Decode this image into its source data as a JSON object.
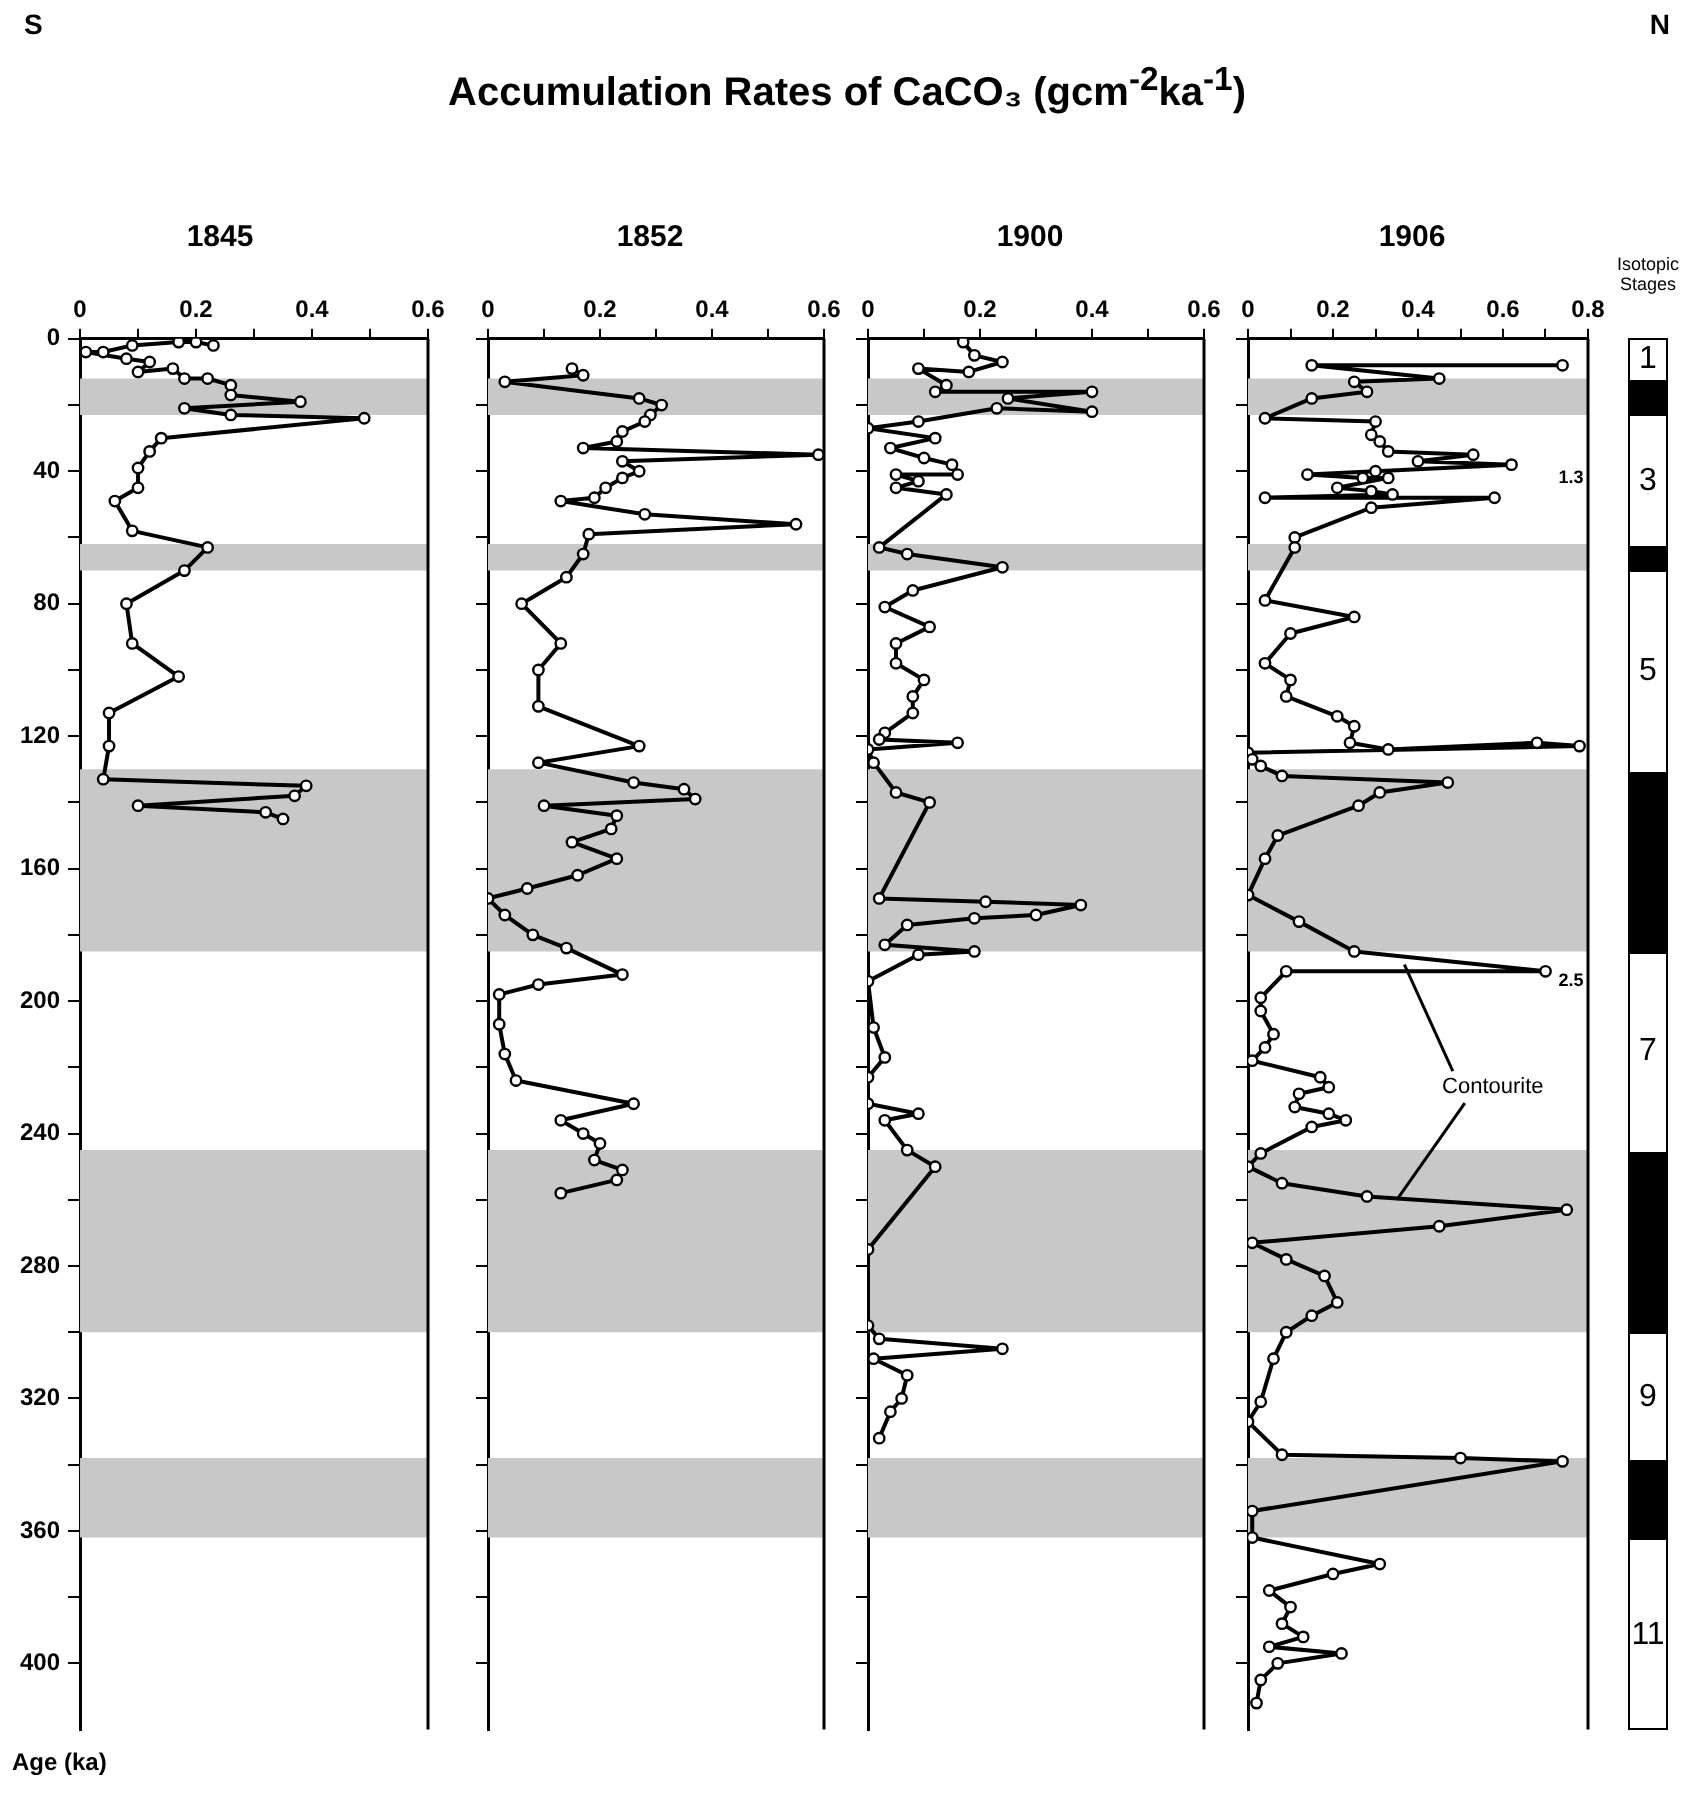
{
  "chart_data": [
    {
      "type": "other",
      "title": "Accumulation Rates of CaCO₃ (gcm$^{-2}$ka$^{-1}$)",
      "annotations": [
        "S",
        "N"
      ]
    },
    {
      "type": "line",
      "title": "1845",
      "ylabel": "Age (ka)",
      "xlim": [
        0,
        0.6
      ],
      "xticks": [
        0,
        {
          "value": 0.1,
          "label": null
        },
        0.2,
        {
          "value": 0.3,
          "label": null
        },
        0.4,
        {
          "value": 0.5,
          "label": null
        },
        0.6
      ],
      "ylim": [
        420,
        0
      ],
      "yticks": [
        0,
        {
          "value": 20,
          "label": null
        },
        40,
        {
          "value": 60,
          "label": null
        },
        80,
        {
          "value": 100,
          "label": null
        },
        120,
        {
          "value": 140,
          "label": null
        },
        160,
        {
          "value": 180,
          "label": null
        },
        200,
        {
          "value": 220,
          "label": null
        },
        240,
        {
          "value": 260,
          "label": null
        },
        280,
        {
          "value": 300,
          "label": null
        },
        320,
        {
          "value": 340,
          "label": null
        },
        360,
        {
          "value": 380,
          "label": null
        },
        400
      ],
      "marker": "circle",
      "bands": [
        {
          "axis": "y",
          "from": 12,
          "to": 23,
          "color": "#c8c8c8"
        },
        {
          "axis": "y",
          "from": 62,
          "to": 70,
          "color": "#c8c8c8"
        },
        {
          "axis": "y",
          "from": 130,
          "to": 185,
          "color": "#c8c8c8"
        },
        {
          "axis": "y",
          "from": 245,
          "to": 300,
          "color": "#c8c8c8"
        },
        {
          "axis": "y",
          "from": 338,
          "to": 362,
          "color": "#c8c8c8"
        }
      ],
      "series": [
        {
          "color": "#000000",
          "x": [
            0.23,
            0.2,
            0.17,
            0.09,
            0.04,
            0.01,
            0.08,
            0.12,
            0.1,
            0.16,
            0.18,
            0.22,
            0.26,
            0.26,
            0.38,
            0.18,
            0.26,
            0.49,
            0.14,
            0.12,
            0.1,
            0.1,
            0.06,
            0.09,
            0.22,
            0.18,
            0.08,
            0.09,
            0.17,
            0.05,
            0.05,
            0.04,
            0.39,
            0.37,
            0.1,
            0.32,
            0.35
          ],
          "values": [
            2,
            1,
            1,
            2,
            4,
            4,
            6,
            7,
            10,
            9,
            12,
            12,
            14,
            17,
            19,
            21,
            23,
            24,
            30,
            34,
            39,
            45,
            49,
            58,
            63,
            70,
            80,
            92,
            102,
            113,
            123,
            133,
            135,
            138,
            141,
            143,
            145
          ]
        }
      ]
    },
    {
      "type": "line",
      "title": "1852",
      "tick_labels": "x",
      "xlim": [
        0,
        0.6
      ],
      "xticks": [
        0,
        {
          "value": 0.1,
          "label": null
        },
        0.2,
        {
          "value": 0.3,
          "label": null
        },
        0.4,
        {
          "value": 0.5,
          "label": null
        },
        0.6
      ],
      "ylim": [
        420,
        0
      ],
      "yticks": [
        0,
        {
          "value": 20,
          "label": null
        },
        40,
        {
          "value": 60,
          "label": null
        },
        80,
        {
          "value": 100,
          "label": null
        },
        120,
        {
          "value": 140,
          "label": null
        },
        160,
        {
          "value": 180,
          "label": null
        },
        200,
        {
          "value": 220,
          "label": null
        },
        240,
        {
          "value": 260,
          "label": null
        },
        280,
        {
          "value": 300,
          "label": null
        },
        320,
        {
          "value": 340,
          "label": null
        },
        360,
        {
          "value": 380,
          "label": null
        },
        400
      ],
      "marker": "circle",
      "bands": [
        {
          "axis": "y",
          "from": 12,
          "to": 23,
          "color": "#c8c8c8"
        },
        {
          "axis": "y",
          "from": 62,
          "to": 70,
          "color": "#c8c8c8"
        },
        {
          "axis": "y",
          "from": 130,
          "to": 185,
          "color": "#c8c8c8"
        },
        {
          "axis": "y",
          "from": 245,
          "to": 300,
          "color": "#c8c8c8"
        },
        {
          "axis": "y",
          "from": 338,
          "to": 362,
          "color": "#c8c8c8"
        }
      ],
      "series": [
        {
          "color": "#000000",
          "x": [
            0.15,
            0.17,
            0.03,
            0.27,
            0.31,
            0.29,
            0.28,
            0.24,
            0.23,
            0.17,
            0.59,
            0.24,
            0.27,
            0.24,
            0.21,
            0.19,
            0.13,
            0.28,
            0.55,
            0.18,
            0.17,
            0.14,
            0.06,
            0.13,
            0.09,
            0.09,
            0.27,
            0.09,
            0.26,
            0.35,
            0.37,
            0.1,
            0.23,
            0.22,
            0.15,
            0.23,
            0.16,
            0.07,
            0,
            0.03,
            0.08,
            0.14,
            0.24,
            0.09,
            0.02,
            0.02,
            0.03,
            0.05,
            0.26,
            0.13,
            0.17,
            0.2,
            0.19,
            0.24,
            0.23,
            0.13
          ],
          "values": [
            9,
            11,
            13,
            18,
            20,
            23,
            25,
            28,
            31,
            33,
            35,
            37,
            40,
            42,
            45,
            48,
            49,
            53,
            56,
            59,
            65,
            72,
            80,
            92,
            100,
            111,
            123,
            128,
            134,
            136,
            139,
            141,
            144,
            148,
            152,
            157,
            162,
            166,
            169,
            174,
            180,
            184,
            192,
            195,
            198,
            207,
            216,
            224,
            231,
            236,
            240,
            243,
            248,
            251,
            254,
            258
          ]
        }
      ]
    },
    {
      "type": "line",
      "title": "1900",
      "tick_labels": "x",
      "xlim": [
        0,
        0.6
      ],
      "xticks": [
        0,
        {
          "value": 0.1,
          "label": null
        },
        0.2,
        {
          "value": 0.3,
          "label": null
        },
        0.4,
        {
          "value": 0.5,
          "label": null
        },
        0.6
      ],
      "ylim": [
        420,
        0
      ],
      "yticks": [
        0,
        {
          "value": 20,
          "label": null
        },
        40,
        {
          "value": 60,
          "label": null
        },
        80,
        {
          "value": 100,
          "label": null
        },
        120,
        {
          "value": 140,
          "label": null
        },
        160,
        {
          "value": 180,
          "label": null
        },
        200,
        {
          "value": 220,
          "label": null
        },
        240,
        {
          "value": 260,
          "label": null
        },
        280,
        {
          "value": 300,
          "label": null
        },
        320,
        {
          "value": 340,
          "label": null
        },
        360,
        {
          "value": 380,
          "label": null
        },
        400
      ],
      "marker": "circle",
      "bands": [
        {
          "axis": "y",
          "from": 12,
          "to": 23,
          "color": "#c8c8c8"
        },
        {
          "axis": "y",
          "from": 62,
          "to": 70,
          "color": "#c8c8c8"
        },
        {
          "axis": "y",
          "from": 130,
          "to": 185,
          "color": "#c8c8c8"
        },
        {
          "axis": "y",
          "from": 245,
          "to": 300,
          "color": "#c8c8c8"
        },
        {
          "axis": "y",
          "from": 338,
          "to": 362,
          "color": "#c8c8c8"
        }
      ],
      "series": [
        {
          "color": "#000000",
          "x": [
            0.17,
            0.19,
            0.24,
            0.18,
            0.09,
            0.14,
            0.12,
            0.4,
            0.25,
            0.4,
            0.23,
            0.09,
            0,
            0.12,
            0.04,
            0.1,
            0.15,
            0.16,
            0.05,
            0.09,
            0.05,
            0.14,
            0.02,
            0.07,
            0.24,
            0.08,
            0.03,
            0.11,
            0.05,
            0.05,
            0.1,
            0.08,
            0.08,
            0.03,
            0.02,
            0.16,
            0,
            0.01,
            0.05,
            0.11,
            0.02,
            0.21,
            0.38,
            0.3,
            0.19,
            0.07,
            0.03,
            0.19,
            0.09,
            0,
            0.01,
            0.03,
            0,
            0,
            0.09,
            0.03,
            0.07,
            0.12,
            0,
            0,
            0.02,
            0.24,
            0.01,
            0.07,
            0.06,
            0.04,
            0.02
          ],
          "values": [
            1,
            5,
            7,
            10,
            9,
            14,
            16,
            16,
            18,
            22,
            21,
            25,
            27,
            30,
            33,
            36,
            38,
            41,
            41,
            43,
            45,
            47,
            63,
            65,
            69,
            76,
            81,
            87,
            92,
            98,
            103,
            108,
            113,
            119,
            121,
            122,
            124,
            128,
            137,
            140,
            169,
            170,
            171,
            174,
            175,
            177,
            183,
            185,
            186,
            194,
            208,
            217,
            223,
            231,
            234,
            236,
            245,
            250,
            275,
            298,
            302,
            305,
            308,
            313,
            320,
            324,
            332
          ]
        }
      ]
    },
    {
      "type": "line",
      "title": "1906",
      "tick_labels": "x",
      "xlim": [
        0,
        0.8
      ],
      "xticks": [
        0,
        {
          "value": 0.1,
          "label": null
        },
        0.2,
        {
          "value": 0.3,
          "label": null
        },
        0.4,
        {
          "value": 0.5,
          "label": null
        },
        0.6,
        {
          "value": 0.7,
          "label": null
        },
        0.8
      ],
      "ylim": [
        420,
        0
      ],
      "yticks": [
        0,
        {
          "value": 20,
          "label": null
        },
        40,
        {
          "value": 60,
          "label": null
        },
        80,
        {
          "value": 100,
          "label": null
        },
        120,
        {
          "value": 140,
          "label": null
        },
        160,
        {
          "value": 180,
          "label": null
        },
        200,
        {
          "value": 220,
          "label": null
        },
        240,
        {
          "value": 260,
          "label": null
        },
        280,
        {
          "value": 300,
          "label": null
        },
        320,
        {
          "value": 340,
          "label": null
        },
        360,
        {
          "value": 380,
          "label": null
        },
        400
      ],
      "marker": "circle",
      "bands": [
        {
          "axis": "y",
          "from": 12,
          "to": 23,
          "color": "#c8c8c8"
        },
        {
          "axis": "y",
          "from": 62,
          "to": 70,
          "color": "#c8c8c8"
        },
        {
          "axis": "y",
          "from": 130,
          "to": 185,
          "color": "#c8c8c8"
        },
        {
          "axis": "y",
          "from": 245,
          "to": 300,
          "color": "#c8c8c8"
        },
        {
          "axis": "y",
          "from": 338,
          "to": 362,
          "color": "#c8c8c8"
        }
      ],
      "annotations": [
        "1.3",
        "2.5",
        {
          "text": "Contourite",
          "x": 0.35,
          "y": 260
        }
      ],
      "series": [
        {
          "color": "#000000",
          "x": [
            0.74,
            0.15,
            0.45,
            0.25,
            0.28,
            0.15,
            0.04,
            0.3,
            0.29,
            0.31,
            0.33,
            0.53,
            0.4,
            0.62,
            0.3,
            0.14,
            0.27,
            0.33,
            0.21,
            0.29,
            0.34,
            0.04,
            0.58,
            0.29,
            0.11,
            0.11,
            0.04,
            0.25,
            0.1,
            0.04,
            0.1,
            0.09,
            0.21,
            0.25,
            0.24,
            0.33,
            0.68,
            0.78,
            0,
            0.01,
            0.03,
            0.08,
            0.47,
            0.31,
            0.26,
            0.07,
            0.04,
            0,
            0.12,
            0.25,
            0.7,
            0.09,
            0.03,
            0.03,
            0.06,
            0.04,
            0.01,
            0.17,
            0.19,
            0.12,
            0.11,
            0.19,
            0.23,
            0.15,
            0.03,
            0,
            0.08,
            0.28,
            0.75,
            0.45,
            0.01,
            0.09,
            0.18,
            0.21,
            0.15,
            0.09,
            0.06,
            0.03,
            0,
            0.08,
            0.5,
            0.74,
            0.01,
            0.01,
            0.31,
            0.2,
            0.05,
            0.1,
            0.08,
            0.13,
            0.05,
            0.22,
            0.07,
            0.03,
            0.02
          ],
          "values": [
            8,
            8,
            12,
            13,
            16,
            18,
            24,
            25,
            29,
            31,
            34,
            35,
            37,
            38,
            40,
            41,
            42,
            42,
            45,
            46,
            47,
            48,
            48,
            51,
            60,
            63,
            79,
            84,
            89,
            98,
            103,
            108,
            114,
            117,
            122,
            124,
            122,
            123,
            125,
            127,
            129,
            132,
            134,
            137,
            141,
            150,
            157,
            168,
            176,
            185,
            191,
            191,
            199,
            203,
            210,
            214,
            218,
            223,
            226,
            228,
            232,
            234,
            236,
            238,
            246,
            250,
            255,
            259,
            263,
            268,
            273,
            278,
            283,
            291,
            295,
            300,
            308,
            321,
            327,
            337,
            338,
            339,
            354,
            362,
            370,
            373,
            378,
            383,
            388,
            392,
            395,
            397,
            400,
            405,
            412
          ]
        }
      ]
    },
    {
      "type": "other",
      "title": "Isotopic Stages",
      "annotations": [
        "1",
        "3",
        "5",
        "7",
        "9",
        "11"
      ]
    }
  ]
}
